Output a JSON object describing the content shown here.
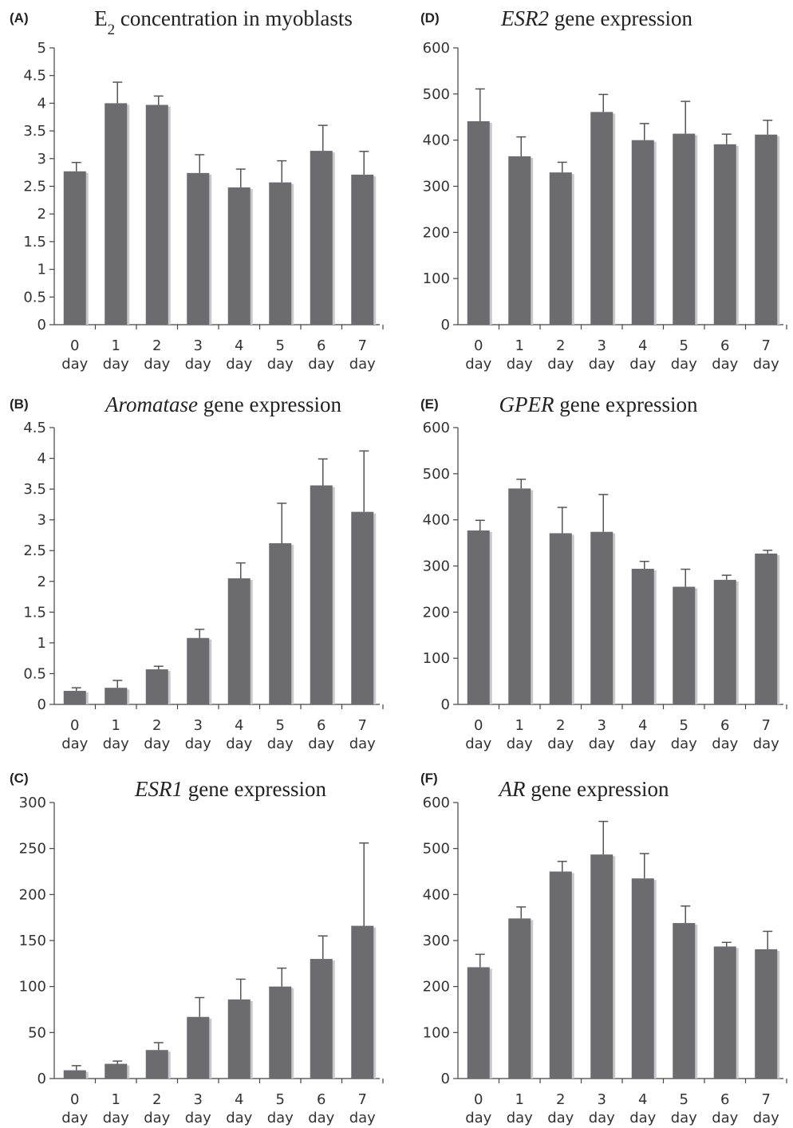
{
  "colors": {
    "bar": "#6b6b70",
    "bar_shadow": "#c9c9cc",
    "axis": "#444444",
    "text": "#222222"
  },
  "chart_data": [
    {
      "panel": "(A)",
      "type": "bar",
      "title_parts": [
        {
          "text": "E",
          "style": "normal"
        },
        {
          "text": "2",
          "style": "sub"
        },
        {
          "text": " concentration in myoblasts",
          "style": "normal"
        }
      ],
      "categories": [
        "0",
        "1",
        "2",
        "3",
        "4",
        "5",
        "6",
        "7"
      ],
      "category_unit": "day",
      "values": [
        2.77,
        4.0,
        3.97,
        2.74,
        2.48,
        2.57,
        3.14,
        2.71
      ],
      "errors": [
        0.16,
        0.38,
        0.16,
        0.33,
        0.33,
        0.39,
        0.46,
        0.42
      ],
      "ylim": [
        0,
        5
      ],
      "yticks": [
        0,
        0.5,
        1,
        1.5,
        2,
        2.5,
        3,
        3.5,
        4,
        4.5,
        5
      ]
    },
    {
      "panel": "(B)",
      "type": "bar",
      "title_parts": [
        {
          "text": "Aromatase",
          "style": "italic"
        },
        {
          "text": " gene expression",
          "style": "normal"
        }
      ],
      "categories": [
        "0",
        "1",
        "2",
        "3",
        "4",
        "5",
        "6",
        "7"
      ],
      "category_unit": "day",
      "values": [
        0.22,
        0.27,
        0.57,
        1.08,
        2.05,
        2.62,
        3.56,
        3.13
      ],
      "errors": [
        0.05,
        0.12,
        0.05,
        0.14,
        0.25,
        0.65,
        0.43,
        0.99
      ],
      "ylim": [
        0,
        4.5
      ],
      "yticks": [
        0,
        0.5,
        1,
        1.5,
        2,
        2.5,
        3,
        3.5,
        4,
        4.5
      ]
    },
    {
      "panel": "(C)",
      "type": "bar",
      "title_parts": [
        {
          "text": "ESR1",
          "style": "italic"
        },
        {
          "text": " gene expression",
          "style": "normal"
        }
      ],
      "categories": [
        "0",
        "1",
        "2",
        "3",
        "4",
        "5",
        "6",
        "7"
      ],
      "category_unit": "day",
      "values": [
        9,
        16,
        31,
        67,
        86,
        100,
        130,
        166
      ],
      "errors": [
        5,
        3,
        8,
        21,
        22,
        20,
        25,
        90
      ],
      "ylim": [
        0,
        300
      ],
      "yticks": [
        0,
        50,
        100,
        150,
        200,
        250,
        300
      ]
    },
    {
      "panel": "(D)",
      "type": "bar",
      "title_parts": [
        {
          "text": "ESR2",
          "style": "italic"
        },
        {
          "text": " gene expression",
          "style": "normal"
        }
      ],
      "categories": [
        "0",
        "1",
        "2",
        "3",
        "4",
        "5",
        "6",
        "7"
      ],
      "category_unit": "day",
      "values": [
        441,
        365,
        330,
        461,
        400,
        414,
        391,
        412
      ],
      "errors": [
        70,
        42,
        22,
        38,
        36,
        70,
        22,
        31
      ],
      "ylim": [
        0,
        600
      ],
      "yticks": [
        0,
        100,
        200,
        300,
        400,
        500,
        600
      ]
    },
    {
      "panel": "(E)",
      "type": "bar",
      "title_parts": [
        {
          "text": "GPER",
          "style": "italic"
        },
        {
          "text": " gene expression",
          "style": "normal"
        }
      ],
      "categories": [
        "0",
        "1",
        "2",
        "3",
        "4",
        "5",
        "6",
        "7"
      ],
      "category_unit": "day",
      "values": [
        377,
        468,
        371,
        374,
        294,
        255,
        270,
        327
      ],
      "errors": [
        22,
        20,
        56,
        81,
        16,
        38,
        10,
        7
      ],
      "ylim": [
        0,
        600
      ],
      "yticks": [
        0,
        100,
        200,
        300,
        400,
        500,
        600
      ]
    },
    {
      "panel": "(F)",
      "type": "bar",
      "title_parts": [
        {
          "text": "AR",
          "style": "italic"
        },
        {
          "text": " gene expression",
          "style": "normal"
        }
      ],
      "categories": [
        "0",
        "1",
        "2",
        "3",
        "4",
        "5",
        "6",
        "7"
      ],
      "category_unit": "day",
      "values": [
        242,
        348,
        450,
        487,
        435,
        338,
        287,
        281
      ],
      "errors": [
        28,
        25,
        22,
        72,
        54,
        37,
        9,
        39
      ],
      "ylim": [
        0,
        600
      ],
      "yticks": [
        0,
        100,
        200,
        300,
        400,
        500,
        600
      ]
    }
  ]
}
